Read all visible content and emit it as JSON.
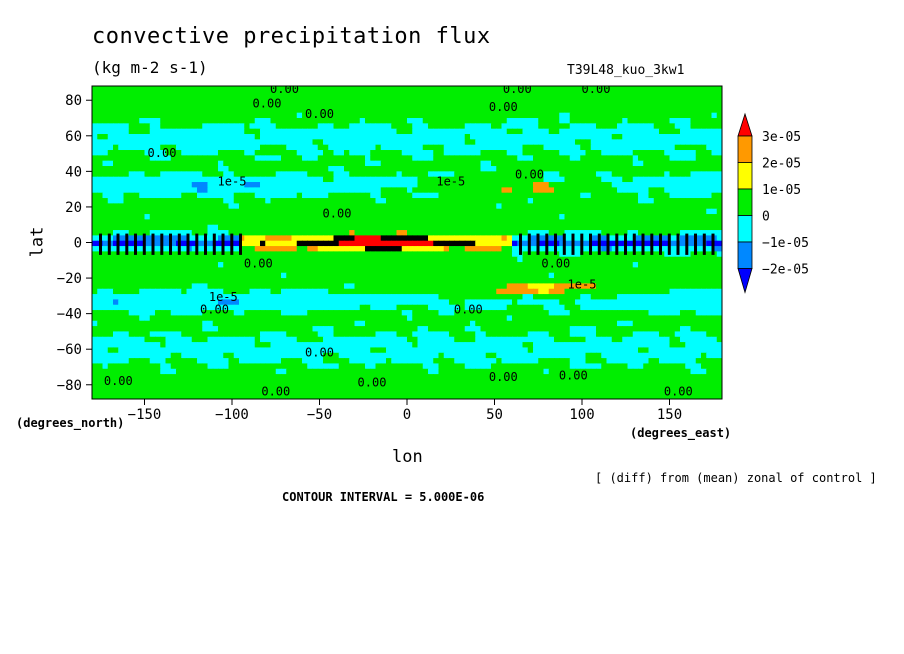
{
  "chart_data": {
    "type": "heatmap",
    "title": "convective precipitation flux",
    "units": "(kg m-2 s-1)",
    "run_label": "T39L48_kuo_3kw1",
    "xlabel": "lon",
    "ylabel": "lat",
    "x_caption": "(degrees_east)",
    "y_caption": "(degrees_north)",
    "xlim": [
      -180,
      180
    ],
    "ylim": [
      -88,
      88
    ],
    "x_ticks": [
      -150,
      -100,
      -50,
      0,
      50,
      100,
      150
    ],
    "y_ticks": [
      80,
      60,
      40,
      20,
      0,
      -20,
      -40,
      -60,
      -80
    ],
    "x_tick_labels": [
      "−150",
      "−100",
      "−50",
      "0",
      "50",
      "100",
      "150"
    ],
    "y_tick_labels": [
      "80",
      "60",
      "40",
      "20",
      "0",
      "−20",
      "−40",
      "−60",
      "−80"
    ],
    "colorbar": {
      "labels": [
        "3e-05",
        "2e-05",
        "1e-05",
        "0",
        "−1e-05",
        "−2e-05"
      ],
      "colors": [
        "#ff0000",
        "#ff9900",
        "#ffff00",
        "#00ee00",
        "#00ffff",
        "#0088ff",
        "#0000ff"
      ]
    },
    "contour_labels": [
      {
        "text": "0.00",
        "lon": -70,
        "lat": 84
      },
      {
        "text": "0.00",
        "lon": -80,
        "lat": 76
      },
      {
        "text": "0.00",
        "lon": -50,
        "lat": 70
      },
      {
        "text": "0.00",
        "lon": 63,
        "lat": 84
      },
      {
        "text": "0.00",
        "lon": 108,
        "lat": 84
      },
      {
        "text": "0.00",
        "lon": 55,
        "lat": 74
      },
      {
        "text": "0.00",
        "lon": -140,
        "lat": 48
      },
      {
        "text": "1e-5",
        "lon": -100,
        "lat": 32
      },
      {
        "text": "1e-5",
        "lon": 25,
        "lat": 32
      },
      {
        "text": "0.00",
        "lon": 70,
        "lat": 36
      },
      {
        "text": "0.00",
        "lon": -40,
        "lat": 14
      },
      {
        "text": "0.00",
        "lon": -85,
        "lat": -14
      },
      {
        "text": "0.00",
        "lon": 85,
        "lat": -14
      },
      {
        "text": "1e-5",
        "lon": 100,
        "lat": -26
      },
      {
        "text": "1e-5",
        "lon": -105,
        "lat": -33
      },
      {
        "text": "0.00",
        "lon": -110,
        "lat": -40
      },
      {
        "text": "0.00",
        "lon": 35,
        "lat": -40
      },
      {
        "text": "0.00",
        "lon": -50,
        "lat": -64
      },
      {
        "text": "0.00",
        "lon": -165,
        "lat": -80
      },
      {
        "text": "0.00",
        "lon": -75,
        "lat": -86
      },
      {
        "text": "0.00",
        "lon": -20,
        "lat": -81
      },
      {
        "text": "0.00",
        "lon": 55,
        "lat": -78
      },
      {
        "text": "0.00",
        "lon": 95,
        "lat": -77
      },
      {
        "text": "0.00",
        "lon": 155,
        "lat": -86
      }
    ]
  },
  "note": "[ (diff) from (mean) zonal of control ]",
  "contour_interval": "CONTOUR INTERVAL = 5.000E-06"
}
